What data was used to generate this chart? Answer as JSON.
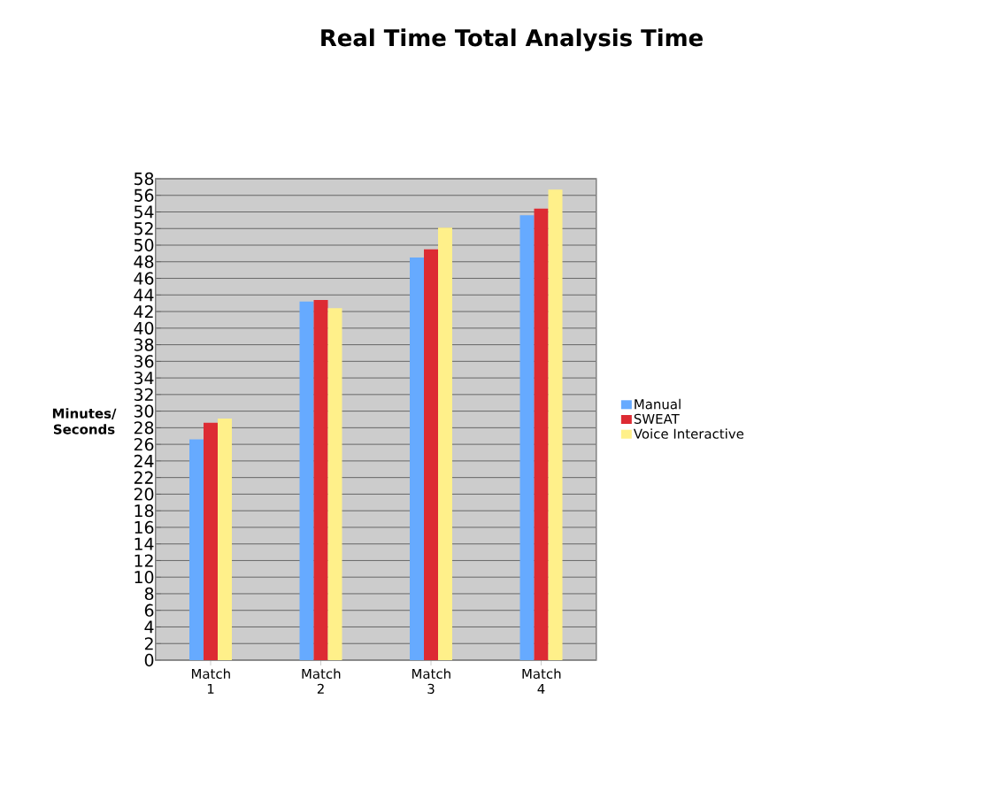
{
  "chart_data": {
    "type": "bar",
    "title": "Real Time Total Analysis Time",
    "ylabel": "Minutes/ Seconds",
    "categories": [
      "Match 1",
      "Match 2",
      "Match 3",
      "Match 4"
    ],
    "series": [
      {
        "name": "Manual",
        "color": "#66aaff",
        "values": [
          26.6,
          43.2,
          48.5,
          53.6
        ]
      },
      {
        "name": "SWEAT",
        "color": "#dd2b33",
        "values": [
          28.6,
          43.4,
          49.5,
          54.4
        ]
      },
      {
        "name": "Voice Interactive",
        "color": "#fff08a",
        "values": [
          29.1,
          42.4,
          52.1,
          56.7
        ]
      }
    ],
    "ylim": [
      0,
      58
    ],
    "yticks": [
      0,
      2,
      4,
      6,
      8,
      10,
      12,
      14,
      16,
      18,
      20,
      22,
      24,
      26,
      28,
      30,
      32,
      34,
      36,
      38,
      40,
      42,
      44,
      46,
      48,
      50,
      52,
      54,
      56,
      58
    ],
    "grid": "y",
    "legend": "right"
  }
}
